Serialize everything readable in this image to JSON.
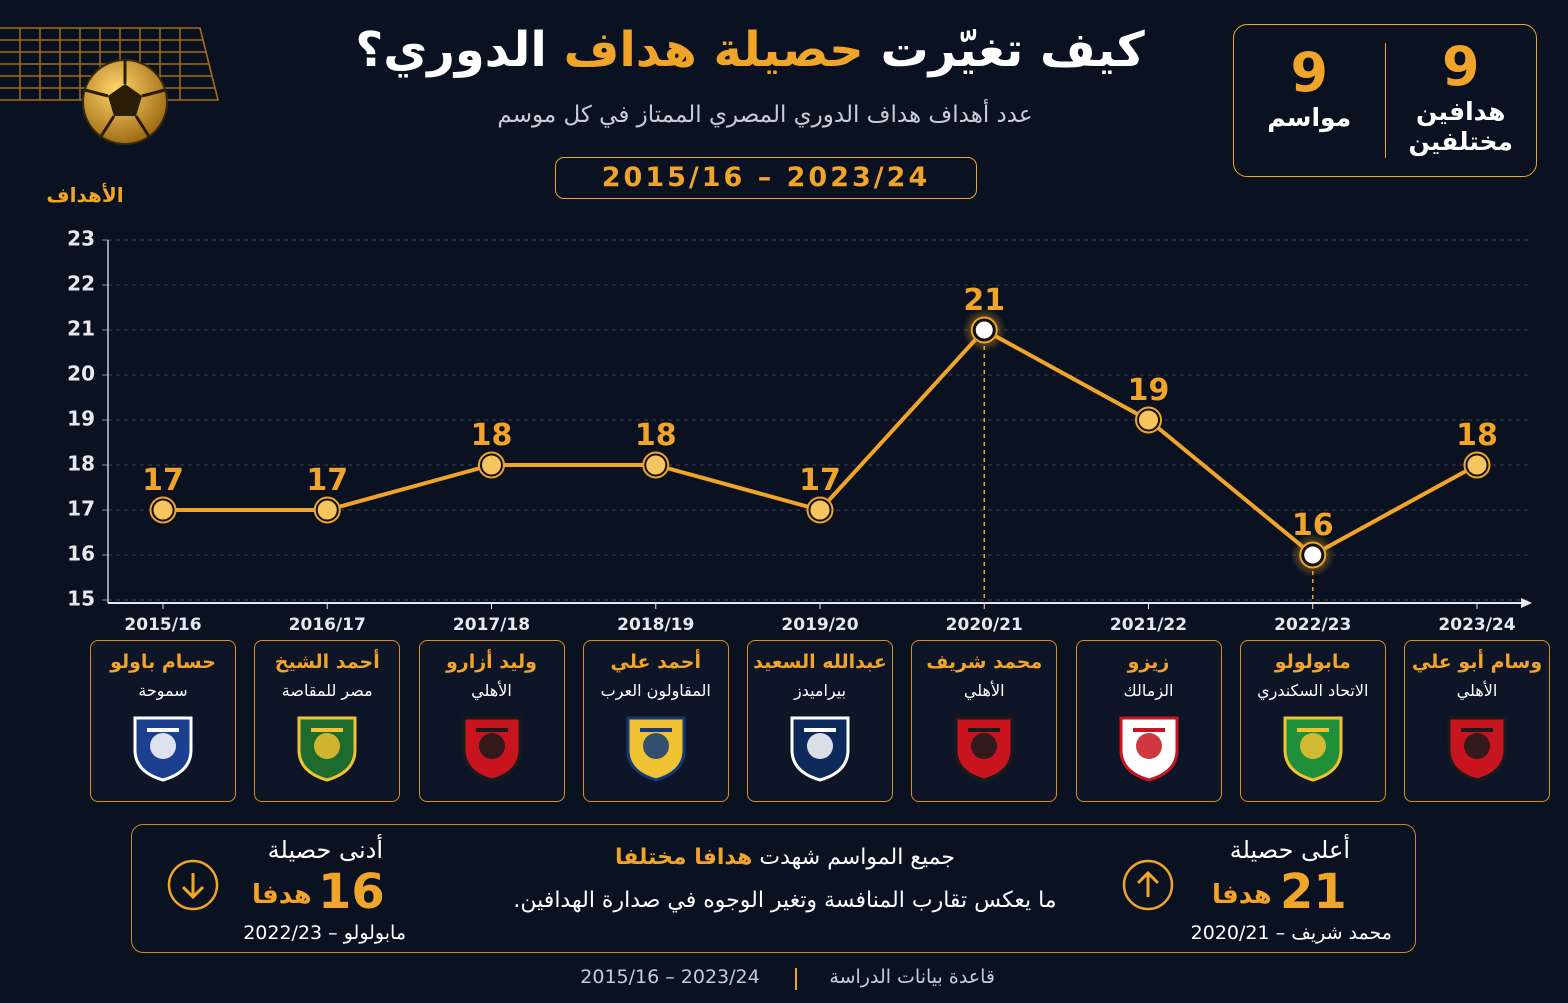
{
  "header": {
    "title_start": "كيف تغيّرت",
    "title_highlight": "حصيلة هداف",
    "title_end": "الدوري؟",
    "subtitle": "عدد أهداف هداف الدوري المصري الممتاز في كل موسم",
    "period": "2015/16 – 2023/24"
  },
  "stats": [
    {
      "value": 9,
      "label": "هدافين مختلفين"
    },
    {
      "value": 9,
      "label": "مواسم"
    }
  ],
  "chart_data": {
    "type": "line",
    "y_label": "الأهداف",
    "categories": [
      "2015/16",
      "2016/17",
      "2017/18",
      "2018/19",
      "2019/20",
      "2020/21",
      "2021/22",
      "2022/23",
      "2023/24"
    ],
    "values": [
      17,
      17,
      18,
      18,
      17,
      21,
      19,
      16,
      18
    ],
    "ylim": [
      15,
      23
    ],
    "yticks": [
      15,
      16,
      17,
      18,
      19,
      20,
      21,
      22,
      23
    ],
    "grid": true,
    "color": "#f0a52a",
    "players": [
      {
        "name": "حسام باولو",
        "club": "سموحة"
      },
      {
        "name": "أحمد الشيخ",
        "club": "مصر للمقاصة"
      },
      {
        "name": "وليد أزارو",
        "club": "الأهلي"
      },
      {
        "name": "أحمد علي",
        "club": "المقاولون العرب"
      },
      {
        "name": "عبدالله السعيد",
        "club": "بيراميدز"
      },
      {
        "name": "محمد شريف",
        "club": "الأهلي"
      },
      {
        "name": "زيزو",
        "club": "الزمالك"
      },
      {
        "name": "مابولولو",
        "club": "الاتحاد السكندري"
      },
      {
        "name": "وسام أبو علي",
        "club": "الأهلي"
      }
    ]
  },
  "summary": {
    "high": {
      "label": "أعلى حصيلة",
      "value": 21,
      "unit": "هدفا",
      "detail": "محمد شريف – 2020/21"
    },
    "middle": {
      "line1_start": "جميع المواسم شهدت",
      "line1_highlight": "هدافا مختلفا",
      "line2": "ما يعكس تقارب المنافسة وتغير الوجوه في صدارة الهدافين."
    },
    "low": {
      "label": "أدنى حصيلة",
      "value": 16,
      "unit": "هدفا",
      "detail": "مابولولو – 2022/23"
    }
  },
  "footer": {
    "source": "قاعدة بيانات الدراسة",
    "period": "2015/16 – 2023/24"
  }
}
